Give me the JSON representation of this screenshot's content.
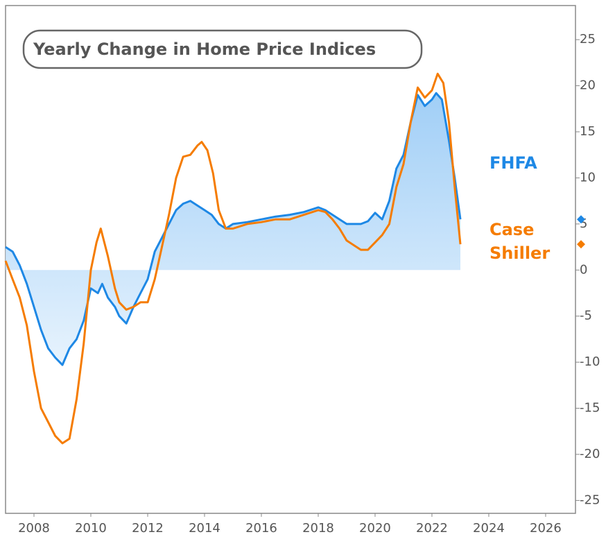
{
  "chart_data": {
    "type": "line",
    "title": "Yearly Change in Home Price Indices",
    "xlim": [
      2007.0,
      2027.05
    ],
    "xticks": [
      2008,
      2010,
      2012,
      2014,
      2016,
      2018,
      2020,
      2022,
      2024,
      2026
    ],
    "ylim": [
      -26.4,
      28.7
    ],
    "yticks": [
      -25,
      -20,
      -15,
      -10,
      -5,
      0,
      5,
      10,
      15,
      20,
      25
    ],
    "series": [
      {
        "name": "FHFA",
        "color": "#1e88e5",
        "fill": true,
        "x": [
          2007.0,
          2007.25,
          2007.5,
          2007.75,
          2008.0,
          2008.25,
          2008.5,
          2008.75,
          2009.0,
          2009.25,
          2009.5,
          2009.75,
          2010.0,
          2010.25,
          2010.4,
          2010.6,
          2010.85,
          2011.0,
          2011.25,
          2011.5,
          2011.75,
          2012.0,
          2012.25,
          2012.5,
          2012.75,
          2013.0,
          2013.25,
          2013.5,
          2013.75,
          2014.0,
          2014.25,
          2014.5,
          2014.75,
          2015.0,
          2015.5,
          2016.0,
          2016.5,
          2017.0,
          2017.5,
          2018.0,
          2018.25,
          2018.5,
          2018.75,
          2019.0,
          2019.5,
          2019.75,
          2020.0,
          2020.25,
          2020.5,
          2020.75,
          2021.0,
          2021.25,
          2021.5,
          2021.75,
          2022.0,
          2022.15,
          2022.35,
          2022.6,
          2022.8,
          2023.0
        ],
        "values": [
          2.5,
          2.0,
          0.5,
          -1.5,
          -4,
          -6.5,
          -8.5,
          -9.5,
          -10.3,
          -8.5,
          -7.5,
          -5.5,
          -2,
          -2.5,
          -1.5,
          -3,
          -4,
          -5,
          -5.8,
          -4,
          -2.5,
          -1,
          2,
          3.5,
          5,
          6.5,
          7.2,
          7.5,
          7.0,
          6.5,
          6.0,
          5.0,
          4.5,
          5.0,
          5.2,
          5.5,
          5.8,
          6.0,
          6.3,
          6.8,
          6.5,
          6.0,
          5.5,
          5.0,
          5.0,
          5.3,
          6.2,
          5.5,
          7.5,
          11,
          12.5,
          16,
          19.0,
          17.8,
          18.5,
          19.2,
          18.5,
          14,
          10,
          5.5
        ]
      },
      {
        "name": "Case Shiller",
        "color": "#f57c00",
        "x": [
          2007.0,
          2007.25,
          2007.5,
          2007.75,
          2008.0,
          2008.25,
          2008.5,
          2008.75,
          2009.0,
          2009.25,
          2009.5,
          2009.75,
          2010.0,
          2010.2,
          2010.35,
          2010.6,
          2010.85,
          2011.0,
          2011.25,
          2011.5,
          2011.75,
          2012.0,
          2012.25,
          2012.5,
          2012.75,
          2013.0,
          2013.25,
          2013.5,
          2013.75,
          2013.9,
          2014.1,
          2014.3,
          2014.5,
          2014.75,
          2015.0,
          2015.5,
          2016.0,
          2016.5,
          2017.0,
          2017.5,
          2018.0,
          2018.25,
          2018.5,
          2018.75,
          2019.0,
          2019.5,
          2019.75,
          2020.0,
          2020.25,
          2020.5,
          2020.75,
          2021.0,
          2021.25,
          2021.5,
          2021.75,
          2022.0,
          2022.2,
          2022.4,
          2022.6,
          2022.8,
          2023.0
        ],
        "values": [
          1.0,
          -1,
          -3,
          -6,
          -11,
          -15,
          -16.5,
          -18,
          -18.8,
          -18.3,
          -14,
          -8,
          0,
          3,
          4.5,
          1.5,
          -2,
          -3.5,
          -4.3,
          -4,
          -3.5,
          -3.5,
          -1,
          2.5,
          6,
          10,
          12.3,
          12.5,
          13.5,
          13.9,
          13,
          10.5,
          6.5,
          4.5,
          4.5,
          5,
          5.2,
          5.5,
          5.5,
          6.0,
          6.5,
          6.3,
          5.5,
          4.5,
          3.2,
          2.2,
          2.2,
          3,
          3.8,
          5,
          9,
          11.5,
          16,
          19.8,
          18.7,
          19.5,
          21.3,
          20.3,
          16,
          9,
          2.8
        ]
      }
    ]
  }
}
